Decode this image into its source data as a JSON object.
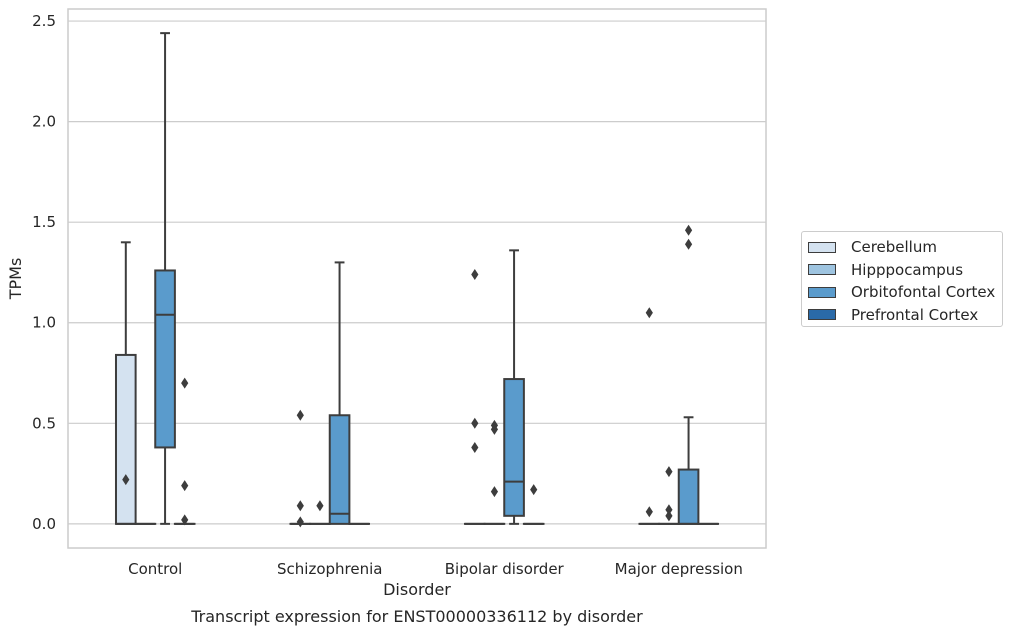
{
  "chart_data": {
    "type": "box",
    "title": "Transcript expression for ENST00000336112 by disorder",
    "xlabel": "Disorder",
    "ylabel": "TPMs",
    "ylim": [
      -0.12,
      2.56
    ],
    "yticks": [
      0.0,
      0.5,
      1.0,
      1.5,
      2.0,
      2.5
    ],
    "ytick_labels": [
      "0.0",
      "0.5",
      "1.0",
      "1.5",
      "2.0",
      "2.5"
    ],
    "grid": "horizontal",
    "legend_position": "right",
    "categories": [
      "Control",
      "Schizophrenia",
      "Bipolar disorder",
      "Major depression"
    ],
    "series": [
      {
        "name": "Cerebellum",
        "color": "#d4e2f0",
        "boxes": [
          {
            "q1": 0.0,
            "median": 0.0,
            "q3": 0.84,
            "whisker_low": 0.0,
            "whisker_high": 1.4,
            "outliers": [
              0.22
            ]
          },
          {
            "q1": 0.0,
            "median": 0.0,
            "q3": 0.0,
            "whisker_low": 0.0,
            "whisker_high": 0.0,
            "outliers": [
              0.54,
              0.09,
              0.01
            ]
          },
          {
            "q1": 0.0,
            "median": 0.0,
            "q3": 0.0,
            "whisker_low": 0.0,
            "whisker_high": 0.0,
            "outliers": [
              1.24,
              0.5,
              0.38
            ]
          },
          {
            "q1": 0.0,
            "median": 0.0,
            "q3": 0.0,
            "whisker_low": 0.0,
            "whisker_high": 0.0,
            "outliers": [
              1.05,
              0.06
            ]
          }
        ]
      },
      {
        "name": "Hipppocampus",
        "color": "#9ec4e0",
        "boxes": [
          {
            "q1": 0.0,
            "median": 0.0,
            "q3": 0.0,
            "whisker_low": 0.0,
            "whisker_high": 0.0,
            "outliers": []
          },
          {
            "q1": 0.0,
            "median": 0.0,
            "q3": 0.0,
            "whisker_low": 0.0,
            "whisker_high": 0.0,
            "outliers": [
              0.09
            ]
          },
          {
            "q1": 0.0,
            "median": 0.0,
            "q3": 0.0,
            "whisker_low": 0.0,
            "whisker_high": 0.0,
            "outliers": [
              0.49,
              0.47,
              0.16
            ]
          },
          {
            "q1": 0.0,
            "median": 0.0,
            "q3": 0.0,
            "whisker_low": 0.0,
            "whisker_high": 0.0,
            "outliers": [
              0.07,
              0.04,
              0.26
            ]
          }
        ]
      },
      {
        "name": "Orbitofontal Cortex",
        "color": "#5a9bcc",
        "boxes": [
          {
            "q1": 0.38,
            "median": 1.04,
            "q3": 1.26,
            "whisker_low": 0.0,
            "whisker_high": 2.44,
            "outliers": []
          },
          {
            "q1": 0.0,
            "median": 0.05,
            "q3": 0.54,
            "whisker_low": 0.0,
            "whisker_high": 1.3,
            "outliers": []
          },
          {
            "q1": 0.04,
            "median": 0.21,
            "q3": 0.72,
            "whisker_low": 0.0,
            "whisker_high": 1.36,
            "outliers": []
          },
          {
            "q1": 0.0,
            "median": 0.0,
            "q3": 0.27,
            "whisker_low": 0.0,
            "whisker_high": 0.53,
            "outliers": [
              1.46,
              1.39
            ]
          }
        ]
      },
      {
        "name": "Prefrontal Cortex",
        "color": "#2a6aa8",
        "boxes": [
          {
            "q1": 0.0,
            "median": 0.0,
            "q3": 0.0,
            "whisker_low": 0.0,
            "whisker_high": 0.0,
            "outliers": [
              0.7,
              0.19,
              0.02
            ]
          },
          {
            "q1": 0.0,
            "median": 0.0,
            "q3": 0.0,
            "whisker_low": 0.0,
            "whisker_high": 0.0,
            "outliers": []
          },
          {
            "q1": 0.0,
            "median": 0.0,
            "q3": 0.0,
            "whisker_low": 0.0,
            "whisker_high": 0.0,
            "outliers": [
              0.17
            ]
          },
          {
            "q1": 0.0,
            "median": 0.0,
            "q3": 0.0,
            "whisker_low": 0.0,
            "whisker_high": 0.0,
            "outliers": []
          }
        ]
      }
    ]
  }
}
